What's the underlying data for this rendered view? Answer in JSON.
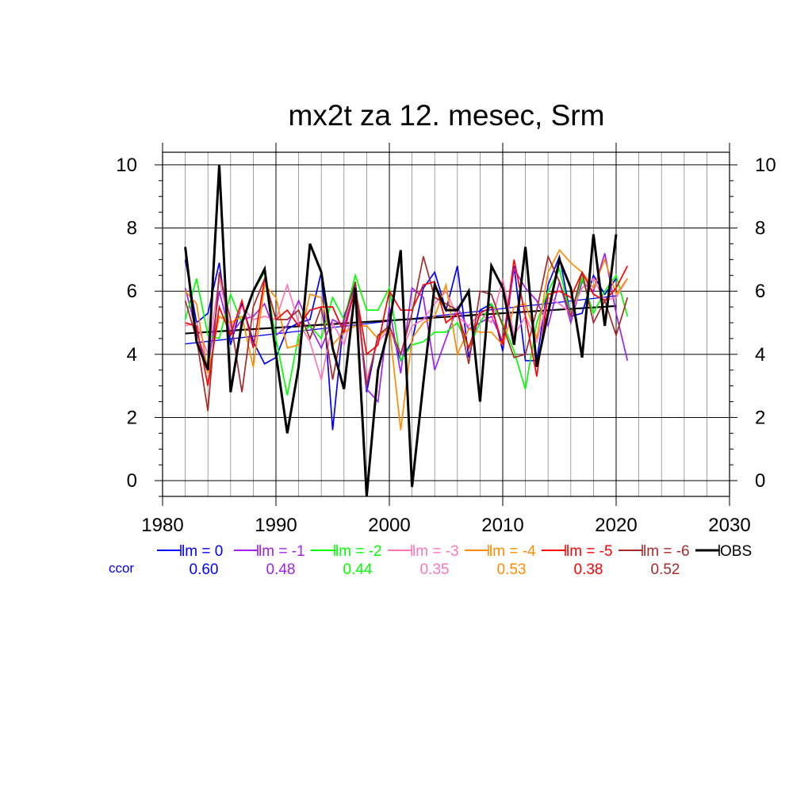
{
  "chart_data": {
    "type": "line",
    "title": "mx2t za 12. mesec, Srm",
    "xlabel": "",
    "ylabel": "",
    "xlim": [
      1980,
      2030
    ],
    "ylim": [
      -0.5,
      10.4
    ],
    "x_ticks": [
      "1980",
      "1990",
      "2000",
      "2010",
      "2020",
      "2030"
    ],
    "y_ticks": [
      "0",
      "2",
      "4",
      "6",
      "8",
      "10"
    ],
    "grid": true,
    "legend_position": "bottom",
    "ccor_label": "ccor",
    "series": [
      {
        "name": "lm = 0",
        "color": "#0000ff",
        "ccor": "0.60",
        "x_start": 1982,
        "values": [
          7.0,
          5.0,
          5.3,
          6.9,
          4.3,
          5.6,
          4.4,
          3.7,
          3.9,
          4.8,
          5.0,
          5.1,
          6.6,
          1.6,
          5.2,
          6.2,
          2.8,
          4.6,
          4.9,
          3.8,
          4.4,
          6.1,
          6.6,
          5.4,
          6.8,
          3.9,
          5.4,
          5.6,
          4.1,
          6.8,
          3.8,
          3.8,
          6.2,
          7.1,
          5.2,
          5.3,
          6.5,
          5.9,
          6.4
        ]
      },
      {
        "name": "lm = -1",
        "color": "#a020f0",
        "ccor": "0.48",
        "x_start": 1982,
        "values": [
          6.1,
          4.7,
          3.6,
          6.0,
          4.6,
          5.1,
          5.2,
          5.6,
          4.6,
          4.9,
          5.7,
          4.9,
          4.2,
          5.1,
          4.9,
          6.1,
          2.9,
          2.5,
          5.5,
          3.4,
          6.1,
          5.8,
          3.5,
          4.5,
          5.5,
          4.8,
          5.0,
          5.2,
          4.4,
          6.7,
          6.1,
          5.7,
          4.9,
          6.3,
          5.0,
          6.3,
          6.0,
          7.2,
          5.3,
          3.8
        ]
      },
      {
        "name": "lm = -2",
        "color": "#00ff00",
        "ccor": "0.44",
        "x_start": 1982,
        "values": [
          5.1,
          6.4,
          4.6,
          4.5,
          5.9,
          5.0,
          6.0,
          6.6,
          4.5,
          2.7,
          4.6,
          4.9,
          4.5,
          5.8,
          5.1,
          6.5,
          5.4,
          5.4,
          6.1,
          3.8,
          4.3,
          4.4,
          4.7,
          4.7,
          5.0,
          4.2,
          5.0,
          5.6,
          5.0,
          4.1,
          2.9,
          5.0,
          6.0,
          6.7,
          5.2,
          6.4,
          5.3,
          6.0,
          6.5,
          5.2
        ]
      },
      {
        "name": "lm = -3",
        "color": "#ff77bb",
        "ccor": "0.35",
        "x_start": 1982,
        "values": [
          4.9,
          5.0,
          4.0,
          6.4,
          4.8,
          5.5,
          5.1,
          5.2,
          5.1,
          6.2,
          5.0,
          4.4,
          3.2,
          5.0,
          4.3,
          5.7,
          3.2,
          4.4,
          4.8,
          4.0,
          4.9,
          5.1,
          5.6,
          6.0,
          5.2,
          4.9,
          5.3,
          5.0,
          6.4,
          4.6,
          5.2,
          4.4,
          5.8,
          5.6,
          5.3,
          6.1,
          6.4,
          5.7,
          5.8,
          6.4
        ]
      },
      {
        "name": "lm = -4",
        "color": "#ff8c00",
        "ccor": "0.53",
        "x_start": 1982,
        "values": [
          6.0,
          5.6,
          3.4,
          5.2,
          5.0,
          5.2,
          3.6,
          6.2,
          5.8,
          4.2,
          4.3,
          5.9,
          5.8,
          4.3,
          4.7,
          4.9,
          4.9,
          4.5,
          4.9,
          1.6,
          4.5,
          5.0,
          5.2,
          6.2,
          4.0,
          4.8,
          4.7,
          4.7,
          4.3,
          5.5,
          5.6,
          4.5,
          6.6,
          7.3,
          6.9,
          6.6,
          6.1,
          7.0,
          5.9,
          6.4
        ]
      },
      {
        "name": "lm = -5",
        "color": "#ff0000",
        "ccor": "0.38",
        "x_start": 1982,
        "values": [
          5.0,
          4.9,
          3.0,
          5.5,
          4.6,
          5.7,
          4.2,
          6.4,
          5.1,
          5.4,
          4.9,
          5.4,
          5.5,
          5.5,
          4.7,
          6.1,
          4.0,
          4.3,
          6.0,
          5.4,
          5.4,
          6.2,
          6.3,
          5.0,
          5.3,
          4.2,
          5.3,
          5.5,
          4.3,
          7.0,
          5.2,
          3.3,
          5.9,
          6.0,
          5.8,
          6.6,
          5.9,
          5.7,
          6.1,
          6.8
        ]
      },
      {
        "name": "lm = -6",
        "color": "#a52a2a",
        "ccor": "0.52",
        "x_start": 1982,
        "values": [
          5.7,
          4.5,
          2.2,
          6.6,
          5.1,
          2.8,
          5.5,
          6.4,
          5.1,
          5.1,
          5.4,
          4.5,
          5.5,
          3.2,
          5.1,
          6.3,
          3.0,
          4.6,
          4.9,
          4.0,
          5.3,
          7.1,
          5.8,
          5.6,
          5.4,
          3.7,
          6.0,
          5.9,
          4.9,
          3.9,
          4.0,
          5.4,
          7.1,
          6.3,
          5.2,
          6.6,
          5.0,
          5.7,
          4.6,
          5.8
        ]
      },
      {
        "name": "OBS",
        "color": "#000000",
        "ccor": "",
        "x_start": 1982,
        "bold": true,
        "values": [
          7.4,
          4.4,
          3.5,
          10.0,
          2.8,
          5.0,
          6.0,
          6.7,
          4.0,
          1.5,
          3.6,
          7.5,
          6.6,
          4.2,
          2.9,
          6.1,
          -0.5,
          3.5,
          4.9,
          7.3,
          -0.2,
          3.1,
          6.2,
          5.4,
          5.4,
          6.0,
          2.5,
          6.8,
          6.1,
          4.3,
          7.4,
          3.6,
          5.3,
          7.0,
          6.1,
          3.9,
          7.8,
          4.9,
          7.8
        ]
      }
    ],
    "trend_lines": [
      {
        "color": "#0000ff",
        "width": 1.3,
        "x": [
          1982,
          2020
        ],
        "values": [
          4.33,
          5.85
        ]
      },
      {
        "color": "#000000",
        "width": 2.2,
        "x": [
          1982,
          2020
        ],
        "values": [
          4.66,
          5.53
        ]
      }
    ]
  }
}
